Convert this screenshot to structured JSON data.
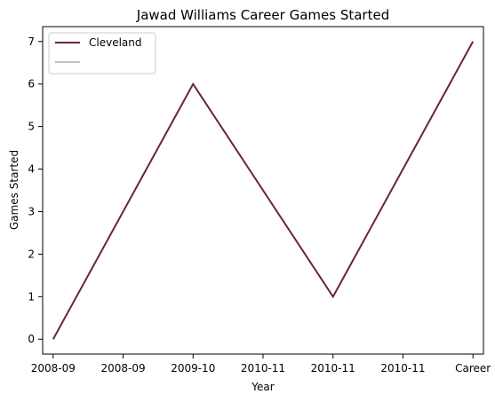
{
  "chart_data": {
    "type": "line",
    "title": "Jawad Williams Career Games Started",
    "xlabel": "Year",
    "ylabel": "Games Started",
    "categories": [
      "2008-09",
      "2008-09",
      "2009-10",
      "2010-11",
      "2010-11",
      "2010-11",
      "Career"
    ],
    "ylim": [
      -0.35,
      7.35
    ],
    "yticks": [
      0,
      1,
      2,
      3,
      4,
      5,
      6,
      7
    ],
    "grid": false,
    "legend": "top-left",
    "series": [
      {
        "name": "Cleveland",
        "color": "#6b2340",
        "x": [
          0,
          2,
          4,
          6
        ],
        "values": [
          0,
          6,
          1,
          7
        ]
      },
      {
        "name": "",
        "color": "#bfbfbf",
        "x": [],
        "values": []
      }
    ]
  }
}
